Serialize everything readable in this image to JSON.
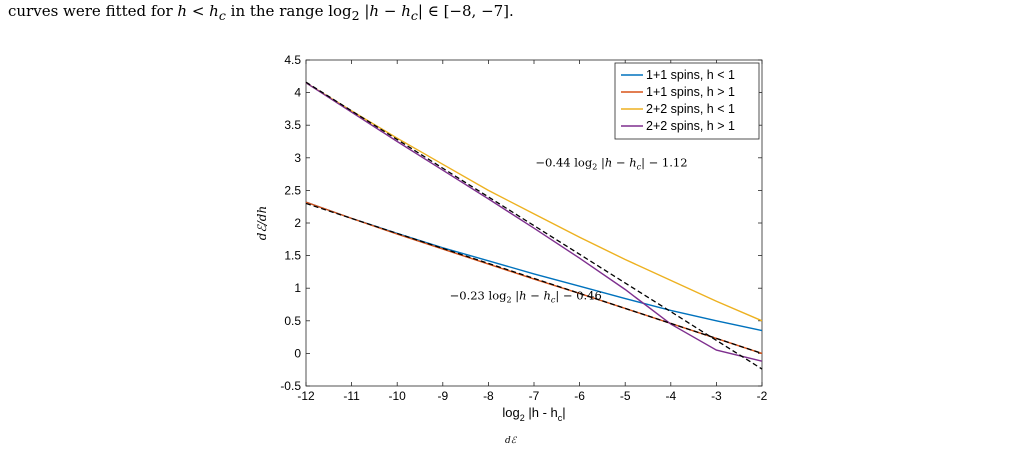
{
  "caption_top": {
    "prefix": "curves were fitted for ",
    "math1": "h < h",
    "math1_sub": "c",
    "middle": " in the range log",
    "middle_sub": "2",
    "math2": " |h − h",
    "math2_sub": "c",
    "suffix": "| ∈ [−8, −7]."
  },
  "caption_bottom": {
    "fragment": "dℰ"
  },
  "chart_data": {
    "type": "line",
    "xlabel": "log",
    "xlabel_sub": "2",
    "xlabel_rest": " |h - h",
    "xlabel_sub2": "c",
    "xlabel_end": "|",
    "ylabel": "dℰ/dh",
    "xlim": [
      -12,
      -2
    ],
    "ylim": [
      -0.5,
      4.5
    ],
    "xticks": [
      -12,
      -11,
      -10,
      -9,
      -8,
      -7,
      -6,
      -5,
      -4,
      -3,
      -2
    ],
    "yticks": [
      -0.5,
      0,
      0.5,
      1,
      1.5,
      2,
      2.5,
      3,
      3.5,
      4,
      4.5
    ],
    "grid": false,
    "legend_position": "top-right",
    "series": [
      {
        "name": "1+1 spins, h < 1",
        "color": "#0072BD",
        "x": [
          -12,
          -11,
          -10,
          -9,
          -8,
          -7,
          -6,
          -5,
          -4,
          -3,
          -2
        ],
        "y": [
          2.32,
          2.07,
          1.84,
          1.62,
          1.42,
          1.22,
          1.03,
          0.84,
          0.66,
          0.5,
          0.35
        ]
      },
      {
        "name": "1+1 spins, h > 1",
        "color": "#D95319",
        "x": [
          -12,
          -11,
          -10,
          -9,
          -8,
          -7,
          -6,
          -5,
          -4,
          -3,
          -2
        ],
        "y": [
          2.32,
          2.07,
          1.83,
          1.6,
          1.37,
          1.14,
          0.92,
          0.69,
          0.46,
          0.23,
          0.0
        ]
      },
      {
        "name": "2+2 spins, h < 1",
        "color": "#EDB120",
        "x": [
          -12,
          -11,
          -10,
          -9,
          -8,
          -7,
          -6,
          -5,
          -4,
          -3,
          -2
        ],
        "y": [
          4.15,
          3.72,
          3.3,
          2.9,
          2.5,
          2.14,
          1.78,
          1.44,
          1.12,
          0.8,
          0.5
        ]
      },
      {
        "name": "2+2 spins, h > 1",
        "color": "#7E2F8E",
        "x": [
          -12,
          -11,
          -10,
          -9,
          -8,
          -7,
          -6,
          -5,
          -4,
          -3,
          -2
        ],
        "y": [
          4.15,
          3.7,
          3.25,
          2.81,
          2.37,
          1.92,
          1.46,
          0.98,
          0.45,
          0.05,
          -0.12
        ]
      }
    ],
    "fits": [
      {
        "label": "−0.44 log₂ |h − h꜀| − 1.12",
        "slope": -0.44,
        "intercept": -1.12
      },
      {
        "label": "−0.23 log₂ |h − h꜀| − 0.46",
        "slope": -0.23,
        "intercept": -0.46
      }
    ],
    "annotations": [
      {
        "text_main": "−0.44 log",
        "sub": "2",
        "text_rest": " |h − h",
        "sub2": "c",
        "text_end": "| − 1.12",
        "x": -6.97,
        "y": 2.87
      },
      {
        "text_main": "−0.23 log",
        "sub": "2",
        "text_rest": " |h − h",
        "sub2": "c",
        "text_end": "| − 0.46",
        "x": -8.85,
        "y": 0.83
      }
    ]
  }
}
